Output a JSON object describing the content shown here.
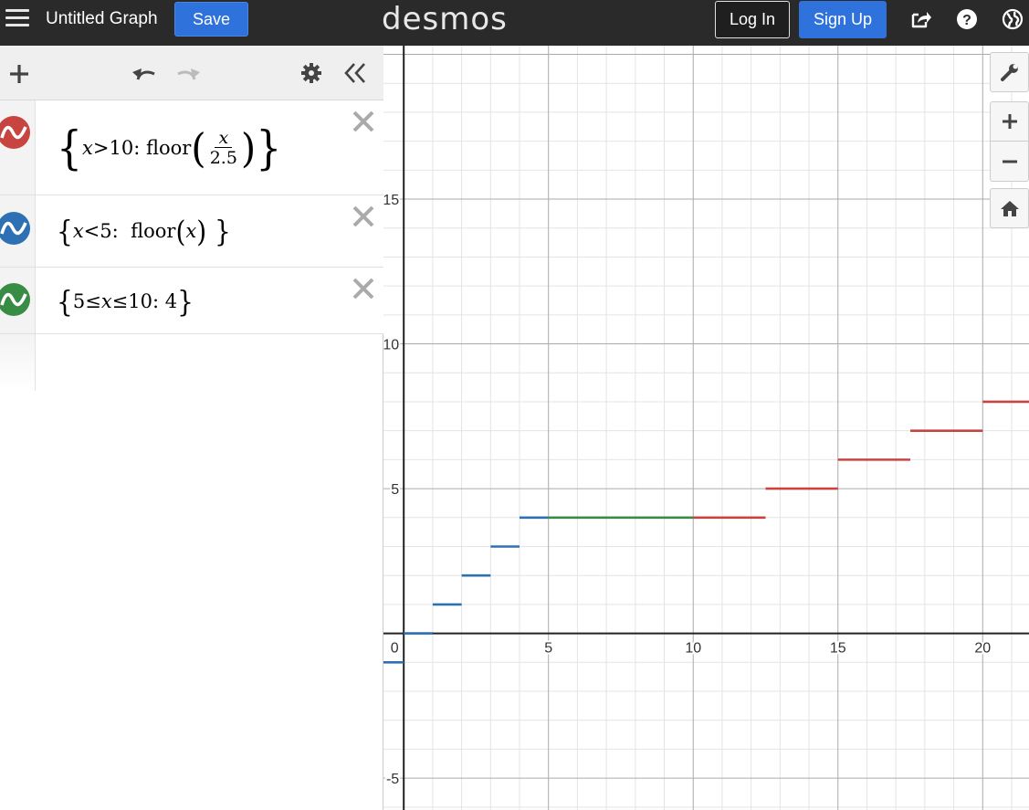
{
  "header": {
    "menu_icon": "hamburger-menu-icon",
    "title": "Untitled Graph",
    "save_label": "Save",
    "logo": "desmos",
    "login_label": "Log In",
    "signup_label": "Sign Up",
    "share_icon": "share-icon",
    "help_icon": "help-icon",
    "language_icon": "globe-icon"
  },
  "toolbar": {
    "add_icon": "plus-icon",
    "undo_icon": "undo-icon",
    "redo_icon": "redo-icon",
    "settings_icon": "gear-icon",
    "collapse_icon": "double-chevron-left-icon"
  },
  "expressions": [
    {
      "color": "#c74440",
      "latex": "\\left\\{x>10:\\operatorname{floor}\\left(\\frac{x}{2.5}\\right)\\right\\}",
      "cond_var": "x",
      "cond_op": " > ",
      "cond_val": "10",
      "fn": "floor",
      "num": "x",
      "den": "2.5"
    },
    {
      "color": "#2d70b3",
      "latex": "\\left\\{x<5:\\ \\operatorname{floor}\\left(x\\right)\\right\\}",
      "cond_var": "x",
      "cond_op": " < ",
      "cond_val": "5",
      "fn": "floor",
      "arg": "x"
    },
    {
      "color": "#388c46",
      "latex": "\\left\\{5\\le x\\le10:\\ 4\\right\\}",
      "low": "5",
      "op1": " ≤ ",
      "var": "x",
      "op2": " ≤ ",
      "high": "10",
      "val": "4"
    }
  ],
  "graph_controls": {
    "wrench_icon": "wrench-icon",
    "zoom_in_icon": "zoom-in-icon",
    "zoom_out_icon": "zoom-out-icon",
    "home_icon": "home-icon"
  },
  "chart_data": {
    "type": "line",
    "xlim": [
      -0.7,
      21.6
    ],
    "ylim": [
      -6.1,
      20.3
    ],
    "grid": true,
    "major_step": 5,
    "minor_step": 1,
    "x_tick_labels": [
      "0",
      "5",
      "10",
      "15",
      "20"
    ],
    "y_tick_labels": [
      "-5",
      "5",
      "10",
      "15"
    ],
    "series": [
      {
        "color": "#2d70b3",
        "segments": [
          [
            -1,
            0,
            -1
          ],
          [
            0,
            1,
            0
          ],
          [
            1,
            2,
            1
          ],
          [
            2,
            3,
            2
          ],
          [
            3,
            4,
            3
          ],
          [
            4,
            5,
            4
          ]
        ]
      },
      {
        "color": "#388c46",
        "segments": [
          [
            5,
            10,
            4
          ]
        ]
      },
      {
        "color": "#c74440",
        "segments": [
          [
            10,
            12.5,
            4
          ],
          [
            12.5,
            15,
            5
          ],
          [
            15,
            17.5,
            6
          ],
          [
            17.5,
            20,
            7
          ],
          [
            20,
            22.5,
            8
          ]
        ]
      }
    ]
  }
}
